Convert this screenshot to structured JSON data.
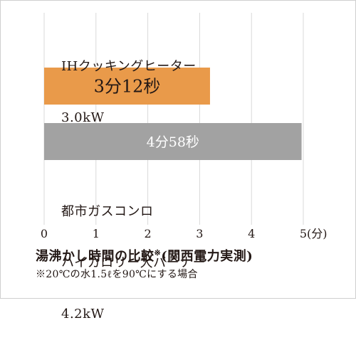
{
  "chart_data": {
    "type": "bar",
    "orientation": "horizontal",
    "unit": "分",
    "xlim": [
      0,
      5
    ],
    "x_ticks": [
      "0",
      "1",
      "2",
      "3",
      "4",
      "5"
    ],
    "x_unit_label": "(分)",
    "grid": true,
    "categories": [
      {
        "lines": [
          "IHクッキングヒーター",
          "3.0kW"
        ]
      },
      {
        "lines": [
          "都市ガスコンロ",
          "ハイカロリー大バーナー",
          "4.2kW"
        ]
      }
    ],
    "values": [
      3.2,
      4.9667
    ],
    "data_labels": [
      "3分12秒",
      "4分58秒"
    ],
    "colors": [
      "#e99a4a",
      "#a2a2a2"
    ],
    "label_colors": [
      "#231815",
      "#ffffff"
    ]
  },
  "caption": {
    "main": "湯沸かし時間の比較",
    "main_mark": "※",
    "main_paren": "(関西電力実測)",
    "note": "※20℃の水1.5ℓを90℃にする場合"
  }
}
